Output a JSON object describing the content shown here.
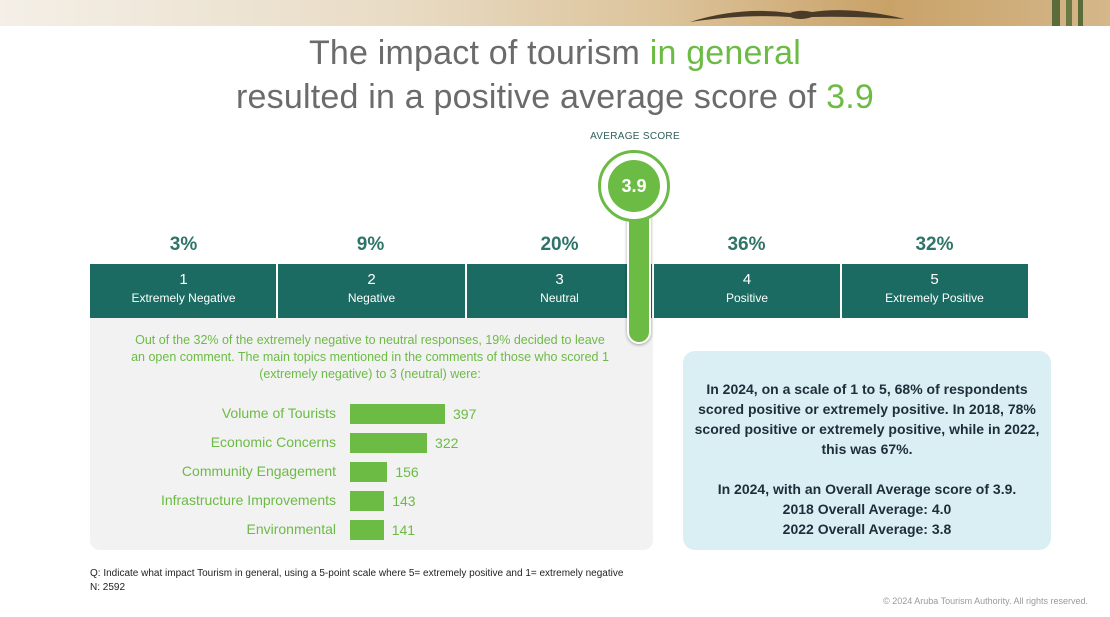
{
  "title": {
    "line1_prefix": "The impact of tourism ",
    "line1_accent": "in general",
    "line2_prefix": "resulted in a positive average score of ",
    "line2_accent": "3.9"
  },
  "average_score": {
    "label": "AVERAGE SCORE",
    "value": "3.9"
  },
  "scale": [
    {
      "number": "1",
      "label": "Extremely Negative",
      "percent": "3%"
    },
    {
      "number": "2",
      "label": "Negative",
      "percent": "9%"
    },
    {
      "number": "3",
      "label": "Neutral",
      "percent": "20%"
    },
    {
      "number": "4",
      "label": "Positive",
      "percent": "36%"
    },
    {
      "number": "5",
      "label": "Extremely Positive",
      "percent": "32%"
    }
  ],
  "topics_intro": "Out of the 32% of the extremely negative to neutral responses, 19% decided to leave an open comment. The main topics mentioned in the comments of those who scored 1 (extremely negative) to 3 (neutral) were:",
  "chart_data": {
    "type": "bar",
    "orientation": "horizontal",
    "categories": [
      "Volume of Tourists",
      "Economic Concerns",
      "Community Engagement",
      "Infrastructure Improvements",
      "Environmental"
    ],
    "values": [
      397,
      322,
      156,
      143,
      141
    ],
    "data_labels": [
      "397",
      "322",
      "156",
      "143",
      "141"
    ],
    "title": "",
    "xlabel": "",
    "ylabel": "",
    "grid": false,
    "legend": "none",
    "color": "#6cbb45"
  },
  "summary": {
    "p1": "In 2024, on a scale of 1 to 5, 68% of respondents scored positive or extremely positive. In 2018, 78% scored positive or extremely positive, while in 2022, this was 67%.",
    "p2_line1": "In 2024, with an Overall Average score of 3.9.",
    "p2_line2": "2018 Overall Average: 4.0",
    "p2_line3": "2022 Overall Average: 3.8"
  },
  "footnote": {
    "question": "Q: Indicate what impact Tourism in general, using a 5-point scale where 5= extremely positive and 1= extremely negative",
    "n": "N: 2592"
  },
  "copyright": "© 2024 Aruba Tourism Authority. All rights reserved.",
  "colors": {
    "green": "#6cbb45",
    "teal": "#1b6b62",
    "gray_text": "#6b6b6b",
    "panel_blue": "#d9eff4"
  }
}
